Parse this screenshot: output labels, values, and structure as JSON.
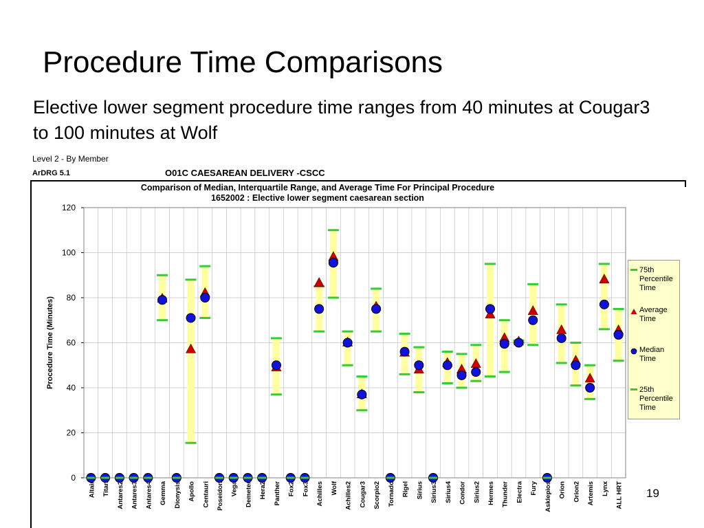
{
  "slide": {
    "title": "Procedure Time Comparisons",
    "subtitle": "Elective lower segment procedure time ranges from 40 minutes at Cougar3 to 100 minutes at Wolf",
    "level": "Level 2 - By Member",
    "ardrg": "ArDRG 5.1",
    "drg": "O01C CAESAREAN DELIVERY -CSCC",
    "page_number": "19"
  },
  "colors": {
    "range_fill": "#ffffa0",
    "percentile_line": "#33cc33",
    "average_marker": "#cc0000",
    "median_marker": "#1111dd",
    "grid": "#c0c0c0"
  },
  "chart_data": {
    "type": "scatter",
    "title_line1": "Comparison of Median, Interquartile Range, and Average Time For Principal Procedure",
    "title_line2": "1652002 : Elective lower segment caesarean section",
    "xlabel": "",
    "ylabel": "Procedure Time (Minutes)",
    "ylim": [
      0,
      120
    ],
    "yticks": [
      0,
      20,
      40,
      60,
      80,
      100,
      120
    ],
    "grid": true,
    "legend_position": "right",
    "categories": [
      "Altair",
      "Titan",
      "Antares2",
      "Antares3",
      "Antares4",
      "Gemma",
      "Dionysis",
      "Apollo",
      "Centauri",
      "Poseidon",
      "Vega",
      "Demeter",
      "Hera2",
      "Panther",
      "Fox2",
      "Fox3",
      "Achilles",
      "Wolf",
      "Achilles2",
      "Cougar3",
      "Scorpio2",
      "Tornado",
      "Rigel",
      "Sirius",
      "Sirius3",
      "Sirius4",
      "Condor",
      "Sirius2",
      "Hermes",
      "Thunder",
      "Electra",
      "Fury",
      "Asklepios",
      "Orion",
      "Orion2",
      "Artemis",
      "Lynx",
      "ALL HRT"
    ],
    "series": [
      {
        "name": "75th Percentile Time",
        "values": [
          0,
          0,
          0,
          0,
          0,
          90,
          0,
          88,
          94,
          0,
          0,
          0,
          0,
          62,
          0,
          0,
          85,
          110,
          65,
          45,
          84,
          0,
          64,
          58,
          0,
          56,
          55,
          59,
          95,
          70,
          61,
          86,
          0,
          77,
          60,
          50,
          95,
          75
        ]
      },
      {
        "name": "Average Time",
        "values": [
          0,
          0,
          0,
          0,
          0,
          79.5,
          0,
          57,
          82,
          0,
          0,
          0,
          0,
          49,
          0,
          0,
          86.5,
          98,
          60,
          37,
          76,
          0,
          55.5,
          48,
          0,
          51,
          48,
          50.5,
          72.5,
          62,
          60.5,
          74,
          0,
          65.5,
          52,
          44,
          88,
          65.5
        ]
      },
      {
        "name": "Median Time",
        "values": [
          0,
          0,
          0,
          0,
          0,
          79,
          0,
          71,
          80,
          0,
          0,
          0,
          0,
          50,
          0,
          0,
          75,
          95.5,
          60,
          37,
          75,
          0,
          56,
          50,
          0,
          50,
          45.5,
          47,
          75,
          59.5,
          60,
          70,
          0,
          62,
          50,
          40,
          77,
          63.5
        ]
      },
      {
        "name": "25th Percentile Time",
        "values": [
          0,
          0,
          0,
          0,
          0,
          70,
          0,
          15.5,
          71,
          0,
          0,
          0,
          0,
          37,
          0,
          0,
          65,
          80,
          50,
          30,
          65,
          0,
          46,
          38,
          0,
          42,
          40,
          43,
          45,
          47,
          60,
          59,
          0,
          51,
          41,
          35,
          66,
          52
        ]
      }
    ]
  }
}
